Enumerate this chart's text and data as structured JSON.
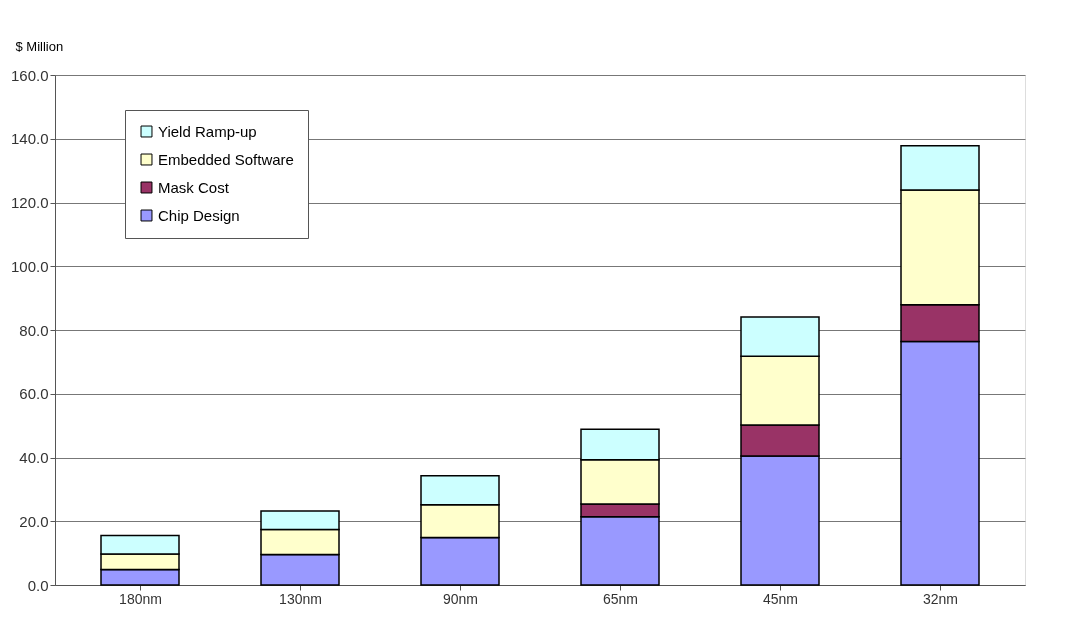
{
  "chart_data": {
    "type": "bar",
    "stacked": true,
    "ylabel": "$ Million",
    "categories": [
      "180nm",
      "130nm",
      "90nm",
      "65nm",
      "45nm",
      "32nm"
    ],
    "series": [
      {
        "name": "Chip Design",
        "color": "#9999ff",
        "values": [
          4.9,
          9.6,
          14.9,
          21.4,
          40.5,
          76.4
        ]
      },
      {
        "name": "Mask Cost",
        "color": "#993366",
        "values": [
          0,
          0,
          0,
          4.0,
          9.7,
          11.5
        ]
      },
      {
        "name": "Embedded Software",
        "color": "#ffffcc",
        "values": [
          4.8,
          7.8,
          10.3,
          13.9,
          21.6,
          36.0
        ]
      },
      {
        "name": "Yield Ramp-up",
        "color": "#ccffff",
        "values": [
          5.8,
          5.8,
          9.1,
          9.6,
          12.3,
          13.9
        ]
      }
    ],
    "ylim": [
      0,
      160
    ],
    "yticks": [
      {
        "value": 0,
        "label": "0.0"
      },
      {
        "value": 20,
        "label": "20.0"
      },
      {
        "value": 40,
        "label": "40.0"
      },
      {
        "value": 60,
        "label": "60.0"
      },
      {
        "value": 80,
        "label": "80.0"
      },
      {
        "value": 100,
        "label": "100.0"
      },
      {
        "value": 120,
        "label": "120.0"
      },
      {
        "value": 140,
        "label": "140.0"
      },
      {
        "value": 160,
        "label": "160.0"
      }
    ],
    "grid": "y",
    "legend": "top left"
  }
}
